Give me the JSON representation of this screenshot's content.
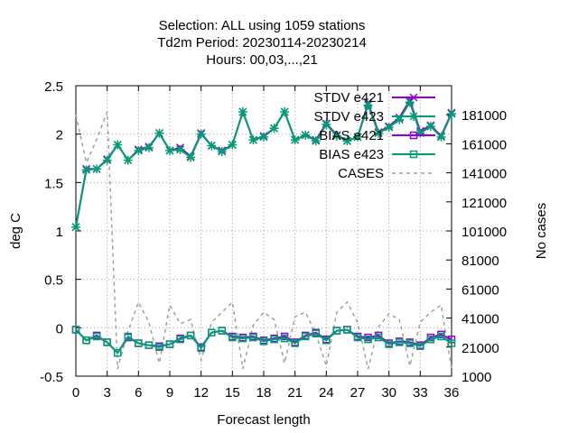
{
  "chart_data": {
    "type": "line",
    "title_lines": [
      "Selection: ALL using  1059 stations",
      "Td2m   Period: 20230114-20230214",
      "Hours:  00,03,...,21"
    ],
    "xlabel": "Forecast length",
    "ylabel": "deg C",
    "y2label": "No cases",
    "xlim": [
      0,
      36
    ],
    "ylim": [
      -0.5,
      2.5
    ],
    "y2lim": [
      1000,
      201000
    ],
    "xticks": [
      0,
      3,
      6,
      9,
      12,
      15,
      18,
      21,
      24,
      27,
      30,
      33,
      36
    ],
    "yticks": [
      -0.5,
      0,
      0.5,
      1,
      1.5,
      2,
      2.5
    ],
    "ytick_labels": [
      "-0.5",
      "0",
      "0.5",
      "1",
      "1.5",
      "2",
      "2.5"
    ],
    "y2ticks": [
      1000,
      21000,
      41000,
      61000,
      81000,
      101000,
      121000,
      141000,
      161000,
      181000
    ],
    "grid": true,
    "legend_position": "top-right",
    "x": [
      0,
      1,
      2,
      3,
      4,
      5,
      6,
      7,
      8,
      9,
      10,
      11,
      12,
      13,
      14,
      15,
      16,
      17,
      18,
      19,
      20,
      21,
      22,
      23,
      24,
      25,
      26,
      27,
      28,
      29,
      30,
      31,
      32,
      33,
      34,
      35,
      36
    ],
    "series": [
      {
        "name": "STDV e421",
        "color": "#9400d3",
        "marker": "x",
        "axis": "y",
        "values": [
          1.04,
          1.64,
          1.64,
          1.74,
          1.89,
          1.73,
          1.84,
          1.87,
          2.01,
          1.83,
          1.86,
          1.77,
          2.01,
          1.88,
          1.83,
          1.89,
          2.23,
          1.94,
          1.98,
          2.06,
          2.23,
          1.94,
          1.99,
          1.94,
          2.11,
          1.99,
          1.93,
          1.97,
          2.32,
          2.02,
          2.08,
          2.17,
          2.35,
          2.03,
          2.09,
          1.98,
          2.22
        ]
      },
      {
        "name": "STDV e423",
        "color": "#009e73",
        "marker": "star",
        "axis": "y",
        "values": [
          1.04,
          1.63,
          1.64,
          1.73,
          1.89,
          1.73,
          1.83,
          1.86,
          2.01,
          1.83,
          1.84,
          1.76,
          2.0,
          1.88,
          1.82,
          1.89,
          2.23,
          1.94,
          1.97,
          2.06,
          2.23,
          1.94,
          1.99,
          1.93,
          2.1,
          1.98,
          1.93,
          1.97,
          2.3,
          2.01,
          2.07,
          2.15,
          2.33,
          2.01,
          2.08,
          1.97,
          2.21
        ]
      },
      {
        "name": "BIAS e421",
        "color": "#9400d3",
        "marker": "square",
        "axis": "y",
        "values": [
          -0.02,
          -0.13,
          -0.08,
          -0.15,
          -0.26,
          -0.1,
          -0.16,
          -0.18,
          -0.19,
          -0.17,
          -0.11,
          -0.08,
          -0.2,
          -0.05,
          -0.03,
          -0.09,
          -0.1,
          -0.09,
          -0.13,
          -0.11,
          -0.09,
          -0.15,
          -0.08,
          -0.05,
          -0.12,
          -0.03,
          -0.02,
          -0.09,
          -0.1,
          -0.08,
          -0.16,
          -0.14,
          -0.15,
          -0.18,
          -0.1,
          -0.07,
          -0.12
        ]
      },
      {
        "name": "BIAS e423",
        "color": "#009e73",
        "marker": "square",
        "axis": "y",
        "values": [
          -0.02,
          -0.13,
          -0.09,
          -0.15,
          -0.26,
          -0.09,
          -0.16,
          -0.18,
          -0.2,
          -0.17,
          -0.12,
          -0.08,
          -0.21,
          -0.05,
          -0.03,
          -0.1,
          -0.11,
          -0.1,
          -0.14,
          -0.12,
          -0.11,
          -0.16,
          -0.09,
          -0.06,
          -0.13,
          -0.03,
          -0.02,
          -0.1,
          -0.12,
          -0.1,
          -0.17,
          -0.15,
          -0.16,
          -0.19,
          -0.12,
          -0.09,
          -0.16
        ]
      },
      {
        "name": "CASES",
        "color": "#a0a0a0",
        "dash": true,
        "axis": "y2",
        "values": [
          181000,
          148000,
          164000,
          183000,
          6000,
          32000,
          52000,
          38000,
          10000,
          50000,
          37000,
          40000,
          12000,
          38000,
          45000,
          52000,
          6000,
          36000,
          45000,
          40000,
          10000,
          42000,
          45000,
          30000,
          8000,
          45000,
          52000,
          38000,
          6000,
          35000,
          44000,
          40000,
          8000,
          38000,
          45000,
          50000,
          6000
        ]
      }
    ]
  }
}
